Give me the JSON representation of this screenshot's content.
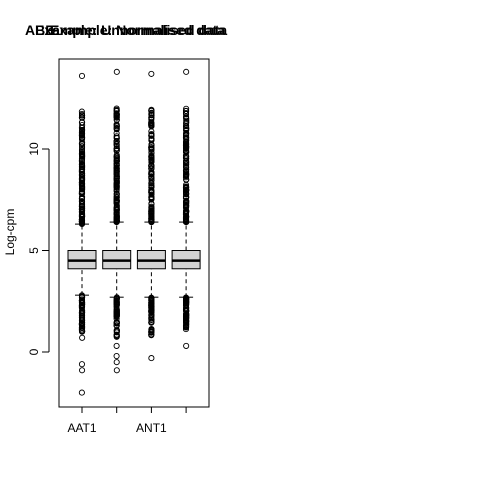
{
  "chart_data": {
    "type": "box",
    "titles": [
      "ABE",
      "Example: Unnormalised data",
      "Example: Normalised data"
    ],
    "ylabel": "Log-cpm",
    "y_ticks": [
      0,
      5,
      10
    ],
    "ylim": [
      -2.5,
      14.5
    ],
    "categories": [
      "AAT1",
      "",
      "ANT1",
      ""
    ],
    "x_tick_labels_shown": [
      "AAT1",
      "ANT1"
    ],
    "boxes": [
      {
        "category": "AAT1",
        "lower_whisker": 2.8,
        "q1": 4.1,
        "median": 4.5,
        "q3": 5.0,
        "upper_whisker": 6.3,
        "outliers_high_range": [
          6.3,
          12.0
        ],
        "outliers_high_extra": [
          13.6
        ],
        "outliers_low_range": [
          0.9,
          2.8
        ],
        "outliers_low_extra": [
          0.7,
          -0.6,
          -0.9,
          -2.0
        ]
      },
      {
        "category": "",
        "lower_whisker": 2.7,
        "q1": 4.1,
        "median": 4.5,
        "q3": 5.0,
        "upper_whisker": 6.4,
        "outliers_high_range": [
          6.4,
          12.2
        ],
        "outliers_high_extra": [
          13.8
        ],
        "outliers_low_range": [
          0.7,
          2.7
        ],
        "outliers_low_extra": [
          0.3,
          -0.2,
          -0.5,
          -0.9
        ]
      },
      {
        "category": "ANT1",
        "lower_whisker": 2.7,
        "q1": 4.1,
        "median": 4.5,
        "q3": 5.0,
        "upper_whisker": 6.4,
        "outliers_high_range": [
          6.4,
          12.0
        ],
        "outliers_high_extra": [
          13.7
        ],
        "outliers_low_range": [
          0.8,
          2.7
        ],
        "outliers_low_extra": [
          -0.3
        ]
      },
      {
        "category": "",
        "lower_whisker": 2.7,
        "q1": 4.1,
        "median": 4.5,
        "q3": 5.0,
        "upper_whisker": 6.4,
        "outliers_high_range": [
          6.4,
          12.1
        ],
        "outliers_high_extra": [
          13.8
        ],
        "outliers_low_range": [
          1.1,
          2.7
        ],
        "outliers_low_extra": [
          0.3
        ]
      }
    ],
    "box_fill": "#d3d3d3",
    "grid": false,
    "legend": "none"
  }
}
